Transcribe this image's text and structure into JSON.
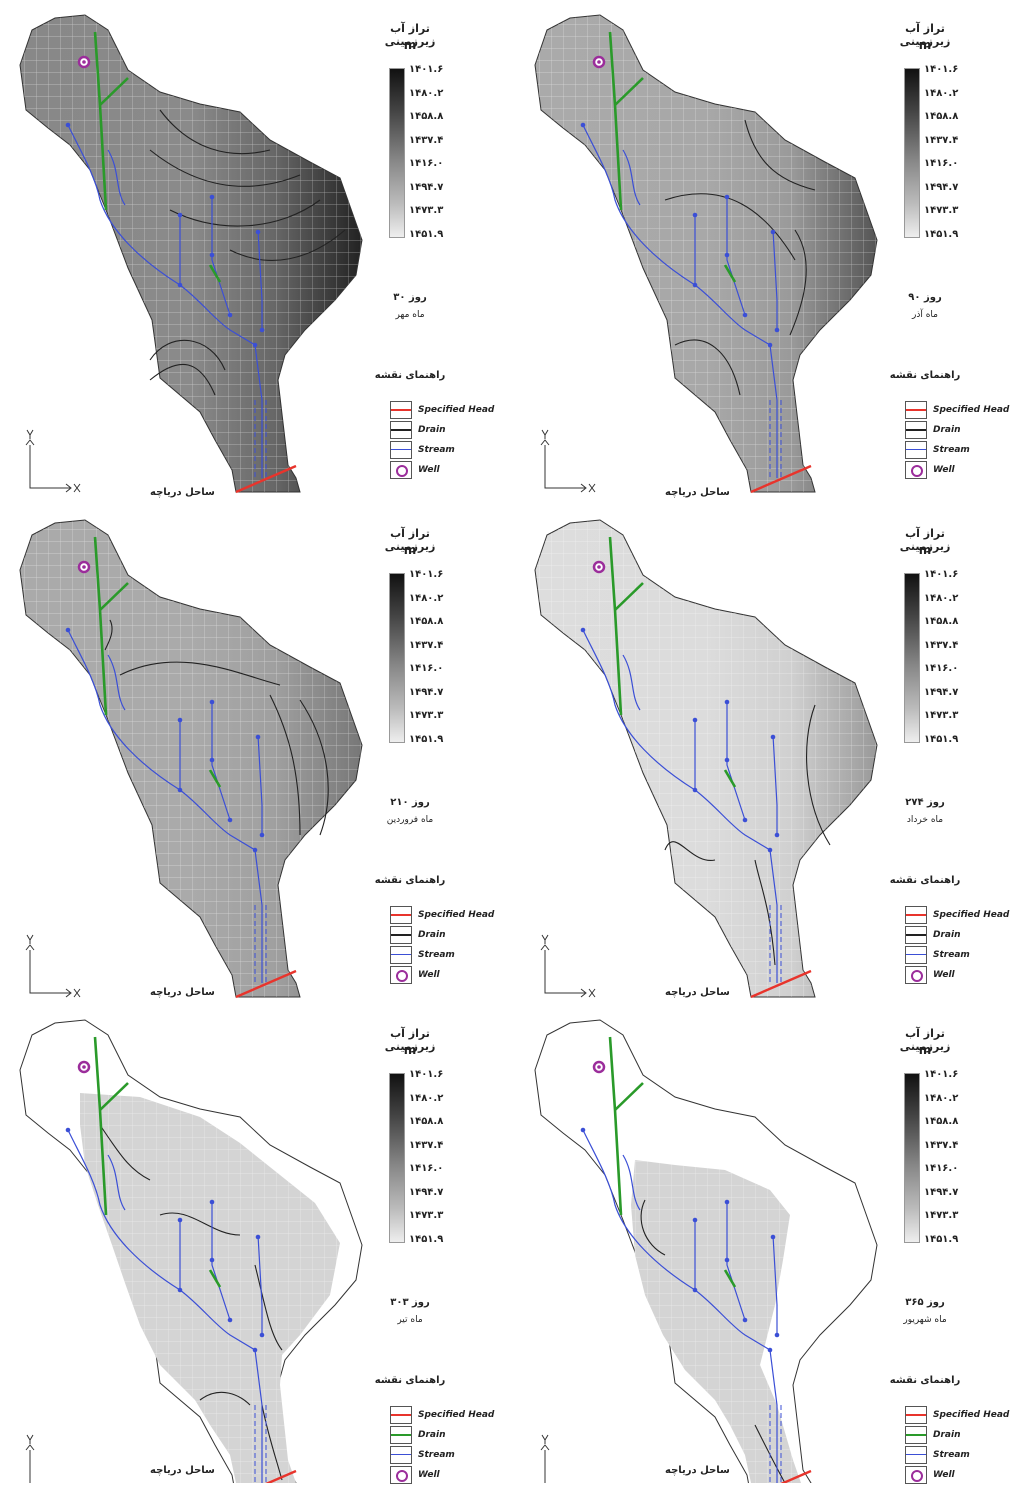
{
  "legend_scale": {
    "title": "تراز آب زیرزمینی",
    "unit": "m",
    "ticks": [
      "۱۴۰۱.۶",
      "۱۴۸۰.۲",
      "۱۴۵۸.۸",
      "۱۴۳۷.۴",
      "۱۴۱۶.۰",
      "۱۴۹۴.۷",
      "۱۴۷۳.۳",
      "۱۴۵۱.۹"
    ]
  },
  "legend_items_title": "راهنمای نقشه",
  "legend_items": [
    "Specified Head",
    "Drain",
    "Stream",
    "Well"
  ],
  "coast_label": "ساحل دریاچه",
  "colors": {
    "specified_head": "#e8342c",
    "drain": "#2a9a2a",
    "stream": "#3b4fd6",
    "well": "#9b2d9b"
  },
  "panels": [
    {
      "day": "روز ۳۰",
      "month": "ماه مهر"
    },
    {
      "day": "روز ۹۰",
      "month": "ماه آذر"
    },
    {
      "day": "روز ۲۱۰",
      "month": "ماه فروردین"
    },
    {
      "day": "روز ۲۷۴",
      "month": "ماه خرداد"
    },
    {
      "day": "روز ۳۰۳",
      "month": "ماه تیر"
    },
    {
      "day": "روز ۳۶۵",
      "month": "ماه شهریور"
    }
  ]
}
